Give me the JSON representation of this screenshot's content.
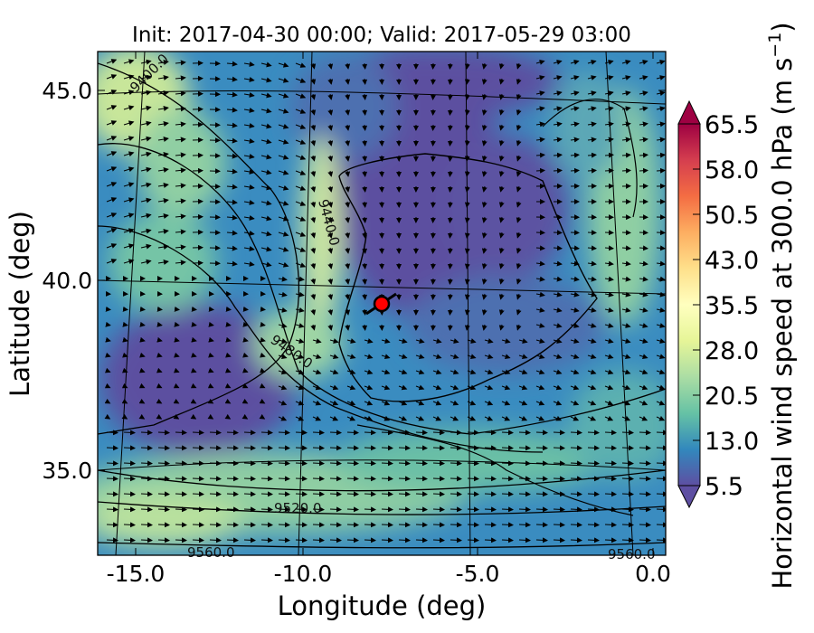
{
  "title": "Init: 2017-04-30 00:00; Valid: 2017-05-29 03:00",
  "chart_data": {
    "type": "map",
    "xlabel": "Longitude (deg)",
    "ylabel": "Latitude (deg)",
    "xticks": [
      "-15.0",
      "-10.0",
      "-5.0",
      "0.0"
    ],
    "yticks": [
      "45.0",
      "40.0",
      "35.0"
    ],
    "xlim": [
      -16,
      0
    ],
    "ylim": [
      32.6,
      46.1
    ],
    "colorbar": {
      "label": "Horizontal wind speed at 300.0 hPa (m s$^{-1}$)",
      "label_text": "Horizontal wind speed at 300.0 hPa (m s",
      "label_sup": "−1",
      "label_close": ")",
      "ticks": [
        "5.5",
        "13.0",
        "20.5",
        "28.0",
        "35.5",
        "43.0",
        "50.5",
        "58.0",
        "65.5"
      ],
      "range": [
        5.5,
        65.5
      ],
      "colormap": "Spectral_r",
      "extend": "both"
    },
    "contour_labels": [
      "9400.0",
      "9440.0",
      "9480.0",
      "9520.0",
      "9560.0",
      "9560.0"
    ],
    "marker": {
      "lon": -7.7,
      "lat": 39.4,
      "color": "#ff0000"
    }
  }
}
